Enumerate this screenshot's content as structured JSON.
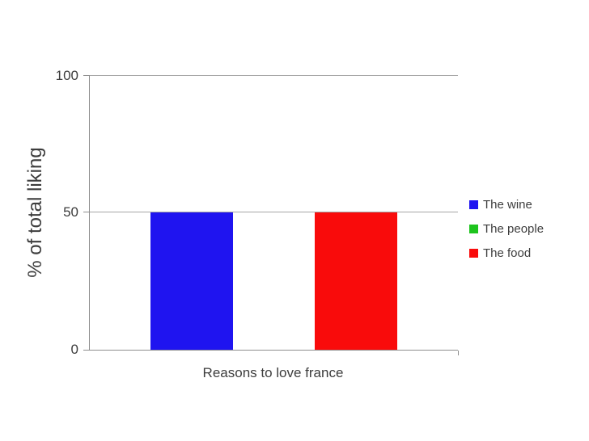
{
  "chart_data": {
    "type": "bar",
    "categories": [
      "Reasons to love france"
    ],
    "series": [
      {
        "name": "The wine",
        "values": [
          50
        ],
        "color": "#1f14f0"
      },
      {
        "name": "The people",
        "values": [
          0
        ],
        "color": "#1ec41e"
      },
      {
        "name": "The food",
        "values": [
          50
        ],
        "color": "#f90b0b"
      }
    ],
    "title": "",
    "xlabel": "Reasons to love france",
    "ylabel": "% of total liking",
    "ylim": [
      0,
      100
    ],
    "yticks": [
      "0",
      "50",
      "100"
    ],
    "grid": true,
    "legend_position": "right",
    "gridline_color": "#a6a6a6",
    "axis_color": "#8e8e8e",
    "text_color": "#3d3d3d",
    "background_color": "#ffffff"
  }
}
